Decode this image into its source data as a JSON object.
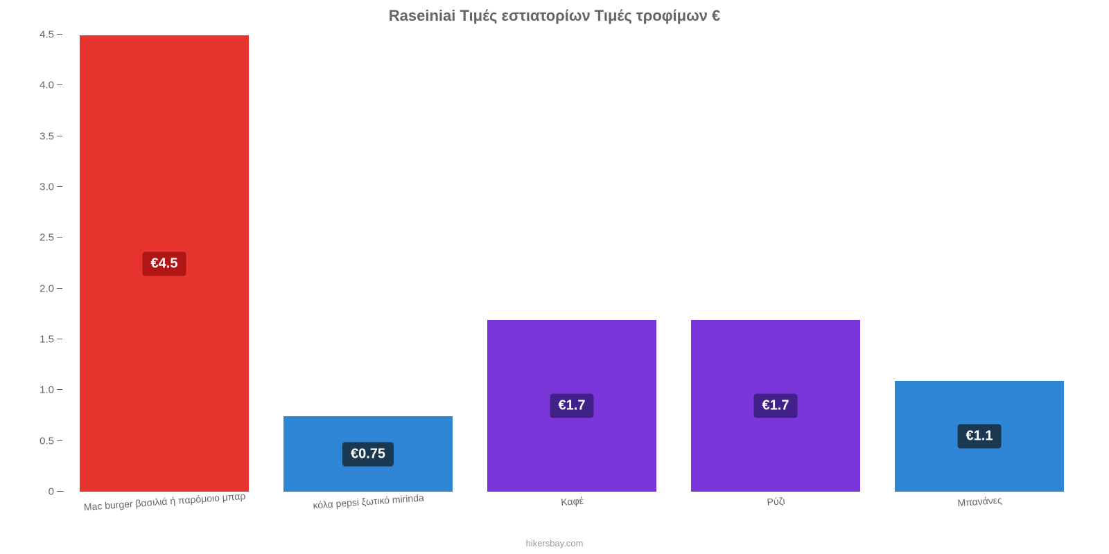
{
  "chart": {
    "type": "bar",
    "title": "Raseiniai Τιμές εστιατορίων Τιμές τροφίμων €",
    "title_fontsize": 22,
    "title_color": "#666666",
    "background_color": "#ffffff",
    "axis_color": "#666666",
    "label_color": "#666666",
    "label_fontsize": 15,
    "x_label_fontsize": 14,
    "bar_width_pct": 84,
    "ylim": [
      0,
      4.5
    ],
    "yticks": [
      0,
      0.5,
      1.0,
      1.5,
      2.0,
      2.5,
      3.0,
      3.5,
      4.0,
      4.5
    ],
    "ytick_labels": [
      "0",
      "0.5",
      "1.0",
      "1.5",
      "2.0",
      "2.5",
      "3.0",
      "3.5",
      "4.0",
      "4.5"
    ],
    "categories": [
      "Mac burger βασιλιά ή παρόμοιο μπαρ",
      "κόλα pepsi ξωτικό mirinda",
      "Καφέ",
      "Ρύζι",
      "Μπανάνες"
    ],
    "values": [
      4.5,
      0.75,
      1.7,
      1.7,
      1.1
    ],
    "display_labels": [
      "€4.5",
      "€0.75",
      "€1.7",
      "€1.7",
      "€1.1"
    ],
    "bar_colors": [
      "#e8342f",
      "#2f86d6",
      "#7a36d9",
      "#7a36d9",
      "#2f86d6"
    ],
    "label_bg_class": [
      "red",
      "navy",
      "purple",
      "purple",
      "navy"
    ],
    "value_label_fontsize": 20,
    "credit": "hikersbay.com",
    "credit_color": "#999999"
  }
}
